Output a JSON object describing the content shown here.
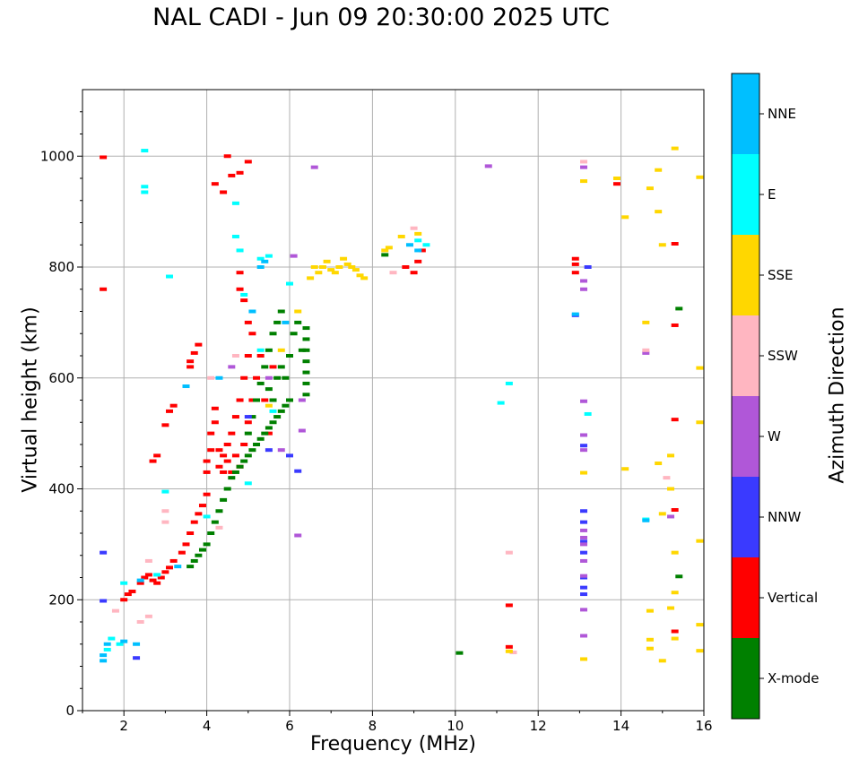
{
  "chart_data": {
    "type": "scatter",
    "title": "NAL CADI - Jun 09 20:30:00 2025 UTC",
    "xlabel": "Frequency (MHz)",
    "ylabel": "Virtual height (km)",
    "xlim": [
      1,
      16
    ],
    "ylim": [
      0,
      1120
    ],
    "xticks": [
      2,
      4,
      6,
      8,
      10,
      12,
      14,
      16
    ],
    "yticks": [
      0,
      200,
      400,
      600,
      800,
      1000
    ],
    "grid": true,
    "colorbar": {
      "label": "Azimuth Direction",
      "categories": [
        {
          "name": "X-mode",
          "color": "#008000"
        },
        {
          "name": "Vertical",
          "color": "#ff0000"
        },
        {
          "name": "NNW",
          "color": "#3a3aff"
        },
        {
          "name": "W",
          "color": "#b057d8"
        },
        {
          "name": "SSW",
          "color": "#ffb6c1"
        },
        {
          "name": "SSE",
          "color": "#ffd700"
        },
        {
          "name": "E",
          "color": "#00ffff"
        },
        {
          "name": "NNE",
          "color": "#00bfff"
        }
      ]
    },
    "series": [
      {
        "name": "Vertical",
        "points": [
          [
            1.5,
            998
          ],
          [
            1.5,
            760
          ],
          [
            2.0,
            200
          ],
          [
            2.1,
            210
          ],
          [
            2.2,
            215
          ],
          [
            2.4,
            230
          ],
          [
            2.5,
            240
          ],
          [
            2.6,
            245
          ],
          [
            2.7,
            235
          ],
          [
            2.8,
            230
          ],
          [
            2.9,
            240
          ],
          [
            3.0,
            250
          ],
          [
            3.1,
            258
          ],
          [
            3.2,
            270
          ],
          [
            3.4,
            285
          ],
          [
            3.5,
            300
          ],
          [
            3.6,
            320
          ],
          [
            3.7,
            340
          ],
          [
            3.8,
            355
          ],
          [
            3.9,
            370
          ],
          [
            4.0,
            390
          ],
          [
            2.7,
            450
          ],
          [
            2.8,
            460
          ],
          [
            3.0,
            515
          ],
          [
            3.1,
            540
          ],
          [
            3.2,
            550
          ],
          [
            3.6,
            620
          ],
          [
            3.6,
            630
          ],
          [
            3.7,
            645
          ],
          [
            3.8,
            660
          ],
          [
            4.0,
            430
          ],
          [
            4.0,
            450
          ],
          [
            4.1,
            470
          ],
          [
            4.1,
            500
          ],
          [
            4.2,
            520
          ],
          [
            4.2,
            545
          ],
          [
            4.3,
            440
          ],
          [
            4.3,
            470
          ],
          [
            4.4,
            430
          ],
          [
            4.4,
            460
          ],
          [
            4.5,
            450
          ],
          [
            4.5,
            480
          ],
          [
            4.6,
            430
          ],
          [
            4.6,
            500
          ],
          [
            4.7,
            460
          ],
          [
            4.7,
            530
          ],
          [
            4.8,
            440
          ],
          [
            4.8,
            560
          ],
          [
            4.9,
            480
          ],
          [
            4.9,
            600
          ],
          [
            5.0,
            520
          ],
          [
            5.0,
            640
          ],
          [
            5.1,
            560
          ],
          [
            5.2,
            600
          ],
          [
            4.8,
            790
          ],
          [
            4.8,
            760
          ],
          [
            4.9,
            740
          ],
          [
            5.0,
            700
          ],
          [
            5.1,
            680
          ],
          [
            4.5,
            1000
          ],
          [
            4.6,
            965
          ],
          [
            4.8,
            970
          ],
          [
            5.0,
            990
          ],
          [
            4.2,
            950
          ],
          [
            4.4,
            935
          ],
          [
            5.3,
            640
          ],
          [
            5.4,
            560
          ],
          [
            5.5,
            500
          ],
          [
            5.6,
            620
          ],
          [
            8.8,
            800
          ],
          [
            9.0,
            790
          ],
          [
            9.1,
            810
          ],
          [
            9.2,
            830
          ],
          [
            12.9,
            815
          ],
          [
            12.9,
            805
          ],
          [
            12.9,
            790
          ],
          [
            13.9,
            950
          ],
          [
            15.3,
            842
          ],
          [
            15.3,
            695
          ],
          [
            15.3,
            525
          ],
          [
            15.3,
            362
          ],
          [
            15.3,
            143
          ],
          [
            11.3,
            190
          ],
          [
            11.3,
            115
          ]
        ]
      },
      {
        "name": "X-mode",
        "points": [
          [
            3.6,
            260
          ],
          [
            3.7,
            270
          ],
          [
            3.8,
            280
          ],
          [
            3.9,
            290
          ],
          [
            4.0,
            300
          ],
          [
            4.1,
            320
          ],
          [
            4.2,
            340
          ],
          [
            4.3,
            360
          ],
          [
            4.4,
            380
          ],
          [
            4.5,
            400
          ],
          [
            4.6,
            420
          ],
          [
            4.7,
            430
          ],
          [
            4.8,
            440
          ],
          [
            4.9,
            450
          ],
          [
            5.0,
            460
          ],
          [
            5.1,
            470
          ],
          [
            5.2,
            480
          ],
          [
            5.3,
            490
          ],
          [
            5.4,
            500
          ],
          [
            5.5,
            510
          ],
          [
            5.6,
            520
          ],
          [
            5.7,
            530
          ],
          [
            5.8,
            540
          ],
          [
            5.9,
            550
          ],
          [
            6.0,
            560
          ],
          [
            5.0,
            500
          ],
          [
            5.1,
            530
          ],
          [
            5.2,
            560
          ],
          [
            5.3,
            590
          ],
          [
            5.4,
            620
          ],
          [
            5.5,
            650
          ],
          [
            5.6,
            680
          ],
          [
            5.7,
            700
          ],
          [
            5.8,
            720
          ],
          [
            5.9,
            600
          ],
          [
            6.0,
            640
          ],
          [
            6.1,
            680
          ],
          [
            6.2,
            700
          ],
          [
            6.4,
            690
          ],
          [
            6.4,
            670
          ],
          [
            6.4,
            650
          ],
          [
            6.4,
            630
          ],
          [
            6.4,
            610
          ],
          [
            6.4,
            590
          ],
          [
            6.4,
            570
          ],
          [
            6.3,
            650
          ],
          [
            5.5,
            580
          ],
          [
            5.6,
            560
          ],
          [
            5.7,
            600
          ],
          [
            5.8,
            620
          ],
          [
            10.1,
            104
          ],
          [
            8.3,
            822
          ],
          [
            15.4,
            725
          ],
          [
            15.4,
            242
          ]
        ]
      },
      {
        "name": "NNW",
        "points": [
          [
            1.5,
            285
          ],
          [
            1.5,
            198
          ],
          [
            2.3,
            95
          ],
          [
            6.2,
            432
          ],
          [
            6.0,
            460
          ],
          [
            13.2,
            800
          ],
          [
            13.1,
            360
          ],
          [
            13.1,
            340
          ],
          [
            13.1,
            305
          ],
          [
            13.1,
            285
          ],
          [
            13.1,
            240
          ],
          [
            13.1,
            222
          ],
          [
            13.1,
            210
          ],
          [
            13.1,
            478
          ],
          [
            5.0,
            530
          ],
          [
            5.5,
            470
          ],
          [
            12.9,
            713
          ]
        ]
      },
      {
        "name": "W",
        "points": [
          [
            6.2,
            316
          ],
          [
            6.3,
            505
          ],
          [
            6.1,
            820
          ],
          [
            6.6,
            980
          ],
          [
            10.8,
            982
          ],
          [
            13.1,
            980
          ],
          [
            13.1,
            775
          ],
          [
            13.1,
            760
          ],
          [
            13.1,
            497
          ],
          [
            13.1,
            470
          ],
          [
            13.1,
            325
          ],
          [
            13.1,
            312
          ],
          [
            13.1,
            300
          ],
          [
            13.1,
            270
          ],
          [
            13.1,
            243
          ],
          [
            13.1,
            135
          ],
          [
            13.1,
            182
          ],
          [
            13.1,
            558
          ],
          [
            15.2,
            350
          ],
          [
            14.6,
            645
          ],
          [
            5.5,
            600
          ],
          [
            4.6,
            620
          ],
          [
            6.3,
            560
          ],
          [
            5.8,
            470
          ]
        ]
      },
      {
        "name": "SSW",
        "points": [
          [
            2.4,
            160
          ],
          [
            2.6,
            170
          ],
          [
            2.8,
            245
          ],
          [
            3.0,
            340
          ],
          [
            3.0,
            360
          ],
          [
            4.1,
            600
          ],
          [
            4.7,
            640
          ],
          [
            9.0,
            870
          ],
          [
            8.5,
            790
          ],
          [
            13.1,
            990
          ],
          [
            15.1,
            420
          ],
          [
            14.6,
            650
          ],
          [
            11.3,
            285
          ],
          [
            11.4,
            105
          ],
          [
            4.3,
            330
          ],
          [
            1.8,
            180
          ],
          [
            2.6,
            270
          ]
        ]
      },
      {
        "name": "SSE",
        "points": [
          [
            6.5,
            780
          ],
          [
            6.6,
            800
          ],
          [
            6.7,
            790
          ],
          [
            6.8,
            800
          ],
          [
            6.9,
            810
          ],
          [
            7.0,
            795
          ],
          [
            7.1,
            790
          ],
          [
            7.2,
            800
          ],
          [
            7.3,
            815
          ],
          [
            7.4,
            805
          ],
          [
            7.5,
            800
          ],
          [
            7.6,
            795
          ],
          [
            7.7,
            785
          ],
          [
            7.8,
            780
          ],
          [
            8.3,
            830
          ],
          [
            8.4,
            835
          ],
          [
            8.7,
            855
          ],
          [
            9.1,
            860
          ],
          [
            15.3,
            1014
          ],
          [
            15.9,
            962
          ],
          [
            14.9,
            975
          ],
          [
            13.9,
            960
          ],
          [
            14.1,
            890
          ],
          [
            14.7,
            942
          ],
          [
            14.9,
            900
          ],
          [
            15.0,
            840
          ],
          [
            13.1,
            955
          ],
          [
            14.6,
            700
          ],
          [
            15.9,
            618
          ],
          [
            15.9,
            520
          ],
          [
            15.2,
            460
          ],
          [
            15.2,
            400
          ],
          [
            14.9,
            446
          ],
          [
            14.1,
            436
          ],
          [
            13.1,
            429
          ],
          [
            15.0,
            355
          ],
          [
            15.3,
            285
          ],
          [
            15.9,
            306
          ],
          [
            15.3,
            213
          ],
          [
            15.2,
            185
          ],
          [
            14.7,
            180
          ],
          [
            15.9,
            155
          ],
          [
            15.3,
            130
          ],
          [
            14.7,
            128
          ],
          [
            14.7,
            112
          ],
          [
            15.9,
            108
          ],
          [
            15.0,
            90
          ],
          [
            13.1,
            93
          ],
          [
            11.3,
            107
          ],
          [
            5.5,
            550
          ],
          [
            5.8,
            650
          ],
          [
            6.2,
            720
          ]
        ]
      },
      {
        "name": "E",
        "points": [
          [
            2.5,
            1010
          ],
          [
            2.5,
            945
          ],
          [
            2.5,
            935
          ],
          [
            3.1,
            783
          ],
          [
            3.0,
            395
          ],
          [
            2.8,
            245
          ],
          [
            1.6,
            110
          ],
          [
            1.7,
            130
          ],
          [
            4.0,
            350
          ],
          [
            4.7,
            915
          ],
          [
            4.7,
            855
          ],
          [
            4.8,
            830
          ],
          [
            5.3,
            815
          ],
          [
            5.5,
            820
          ],
          [
            6.0,
            770
          ],
          [
            9.1,
            848
          ],
          [
            9.3,
            840
          ],
          [
            11.3,
            590
          ],
          [
            11.1,
            555
          ],
          [
            13.2,
            535
          ],
          [
            14.6,
            345
          ],
          [
            5.0,
            410
          ],
          [
            4.9,
            750
          ],
          [
            5.3,
            650
          ],
          [
            5.6,
            540
          ],
          [
            2.0,
            230
          ],
          [
            1.9,
            120
          ]
        ]
      },
      {
        "name": "NNE",
        "points": [
          [
            1.5,
            90
          ],
          [
            1.5,
            100
          ],
          [
            1.6,
            120
          ],
          [
            2.0,
            125
          ],
          [
            2.4,
            235
          ],
          [
            3.3,
            260
          ],
          [
            3.5,
            585
          ],
          [
            5.3,
            800
          ],
          [
            5.4,
            810
          ],
          [
            8.9,
            840
          ],
          [
            9.1,
            830
          ],
          [
            12.9,
            715
          ],
          [
            14.6,
            343
          ],
          [
            4.3,
            600
          ],
          [
            5.1,
            720
          ],
          [
            5.9,
            700
          ],
          [
            2.3,
            120
          ]
        ]
      }
    ]
  }
}
